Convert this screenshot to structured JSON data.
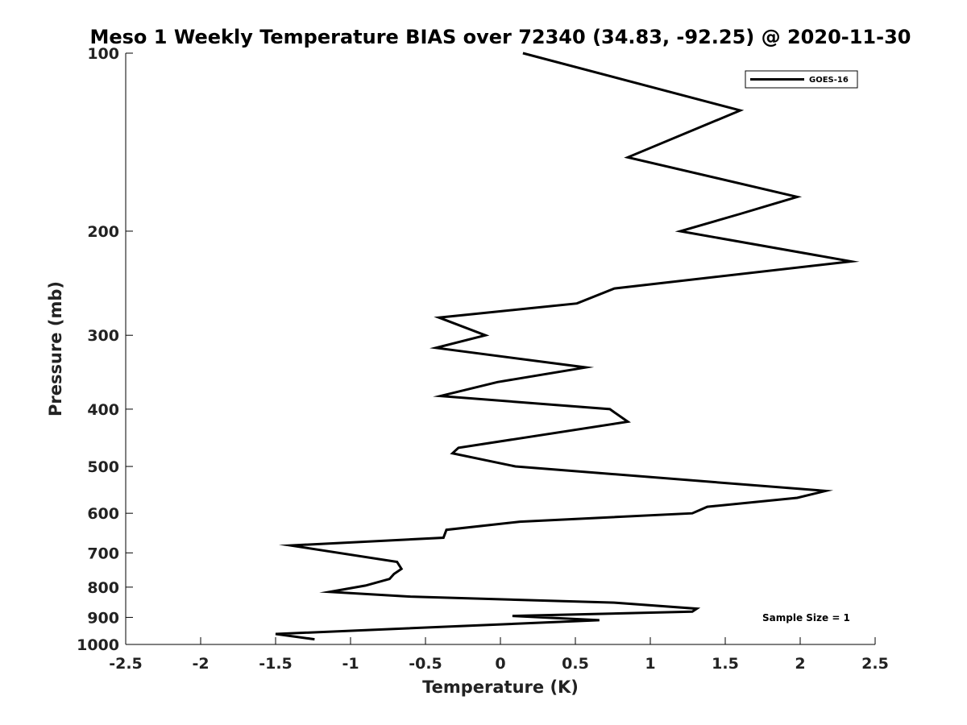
{
  "chart_data": {
    "type": "line",
    "title": "Meso 1 Weekly Temperature BIAS over 72340 (34.83, -92.25) @ 2020-11-30",
    "xlabel": "Temperature (K)",
    "ylabel": "Pressure (mb)",
    "xlim": [
      -2.5,
      2.5
    ],
    "ylim": [
      100,
      1000
    ],
    "y_scale": "log",
    "y_reversed": true,
    "x_ticks": [
      "-2.5",
      "-2",
      "-1.5",
      "-1",
      "-0.5",
      "0",
      "0.5",
      "1",
      "1.5",
      "2",
      "2.5"
    ],
    "y_ticks": [
      "100",
      "200",
      "300",
      "400",
      "500",
      "600",
      "700",
      "800",
      "900",
      "1000"
    ],
    "grid": false,
    "legend_position": "top-right",
    "annotation": "Sample Size = 1",
    "series": [
      {
        "name": "GOES-16",
        "color": "#000000",
        "points": [
          {
            "x": 0.15,
            "y": 100
          },
          {
            "x": 1.6,
            "y": 125
          },
          {
            "x": 0.85,
            "y": 150
          },
          {
            "x": 1.98,
            "y": 175
          },
          {
            "x": 1.6,
            "y": 187
          },
          {
            "x": 1.2,
            "y": 200
          },
          {
            "x": 2.34,
            "y": 225
          },
          {
            "x": 0.76,
            "y": 250
          },
          {
            "x": 0.51,
            "y": 265
          },
          {
            "x": -0.41,
            "y": 280
          },
          {
            "x": -0.1,
            "y": 300
          },
          {
            "x": -0.43,
            "y": 315
          },
          {
            "x": 0.57,
            "y": 340
          },
          {
            "x": -0.02,
            "y": 360
          },
          {
            "x": -0.4,
            "y": 380
          },
          {
            "x": 0.73,
            "y": 400
          },
          {
            "x": 0.85,
            "y": 420
          },
          {
            "x": -0.28,
            "y": 465
          },
          {
            "x": -0.32,
            "y": 475
          },
          {
            "x": 0.1,
            "y": 500
          },
          {
            "x": 2.17,
            "y": 550
          },
          {
            "x": 1.98,
            "y": 565
          },
          {
            "x": 1.38,
            "y": 585
          },
          {
            "x": 1.28,
            "y": 600
          },
          {
            "x": 0.13,
            "y": 620
          },
          {
            "x": -0.36,
            "y": 640
          },
          {
            "x": -0.38,
            "y": 660
          },
          {
            "x": -1.4,
            "y": 680
          },
          {
            "x": -0.69,
            "y": 725
          },
          {
            "x": -0.66,
            "y": 745
          },
          {
            "x": -0.71,
            "y": 760
          },
          {
            "x": -0.74,
            "y": 775
          },
          {
            "x": -0.9,
            "y": 795
          },
          {
            "x": -1.14,
            "y": 815
          },
          {
            "x": -0.6,
            "y": 830
          },
          {
            "x": 0.77,
            "y": 850
          },
          {
            "x": 1.31,
            "y": 870
          },
          {
            "x": 1.28,
            "y": 880
          },
          {
            "x": 0.08,
            "y": 895
          },
          {
            "x": 0.66,
            "y": 910
          },
          {
            "x": -1.5,
            "y": 960
          },
          {
            "x": -1.24,
            "y": 980
          }
        ]
      }
    ]
  }
}
